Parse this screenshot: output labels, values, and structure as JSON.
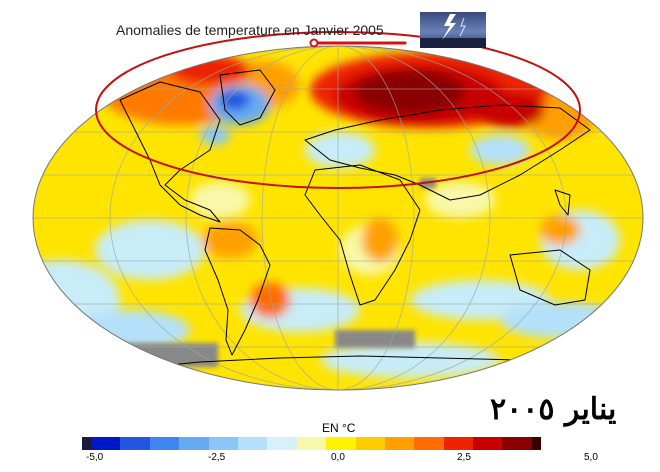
{
  "title": "Anomalies de temperature en Janvier 2005",
  "arabic_caption": "يناير ٢٠٠٥",
  "unit_label": "EN °C",
  "colorbar": {
    "ticks": [
      "-5,0",
      "-2,5",
      "0,0",
      "2,5",
      "5,0"
    ],
    "colors": [
      "#0018c8",
      "#2255e0",
      "#3f86ee",
      "#66aaf2",
      "#8cc6f6",
      "#b4e0fa",
      "#d8f0fb",
      "#f8f8a8",
      "#fff400",
      "#ffcc00",
      "#ffa000",
      "#ff6d00",
      "#ee2400",
      "#c80000",
      "#8a0000"
    ]
  },
  "thumbnail_icon": "lightning-photo-icon"
}
